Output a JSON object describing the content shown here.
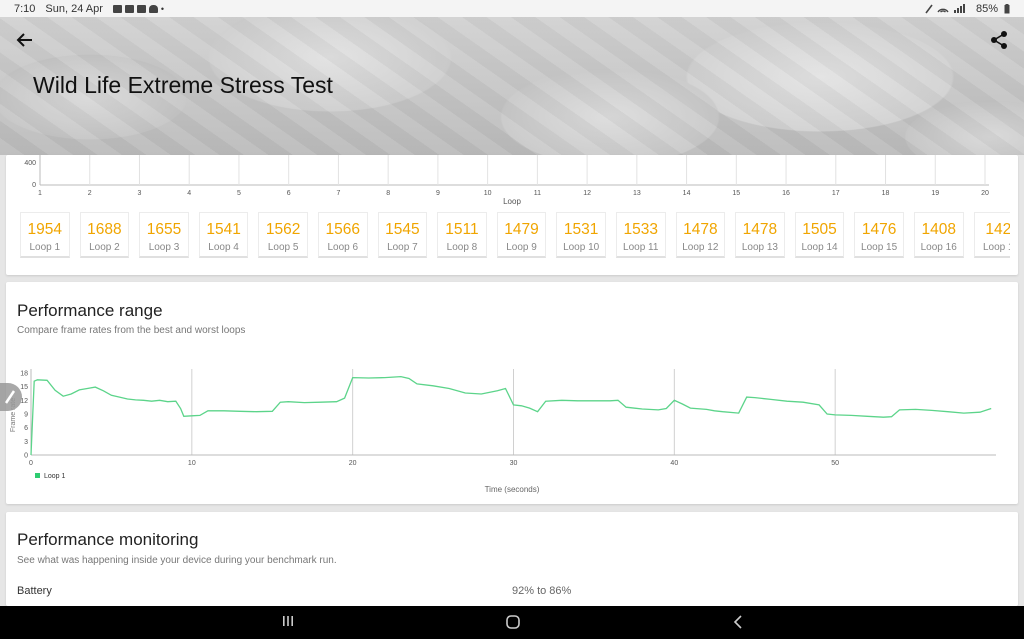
{
  "status": {
    "time": "7:10",
    "date": "Sun, 24 Apr",
    "icons": [
      "image-icon",
      "youtube-icon",
      "mail-icon",
      "cloud-icon"
    ],
    "dot": "•",
    "battery": "85%"
  },
  "header": {
    "title": "Wild Life Extreme Stress Test"
  },
  "loops_card": {
    "axis_label": "Loop",
    "y_ticks": [
      "400",
      "0"
    ],
    "x_ticks": [
      "1",
      "2",
      "3",
      "4",
      "5",
      "6",
      "7",
      "8",
      "9",
      "10",
      "11",
      "12",
      "13",
      "14",
      "15",
      "16",
      "17",
      "18",
      "19",
      "20"
    ],
    "loops": [
      {
        "score": "1954",
        "label": "Loop 1"
      },
      {
        "score": "1688",
        "label": "Loop 2"
      },
      {
        "score": "1655",
        "label": "Loop 3"
      },
      {
        "score": "1541",
        "label": "Loop 4"
      },
      {
        "score": "1562",
        "label": "Loop 5"
      },
      {
        "score": "1566",
        "label": "Loop 6"
      },
      {
        "score": "1545",
        "label": "Loop 7"
      },
      {
        "score": "1511",
        "label": "Loop 8"
      },
      {
        "score": "1479",
        "label": "Loop 9"
      },
      {
        "score": "1531",
        "label": "Loop 10"
      },
      {
        "score": "1533",
        "label": "Loop 11"
      },
      {
        "score": "1478",
        "label": "Loop 12"
      },
      {
        "score": "1478",
        "label": "Loop 13"
      },
      {
        "score": "1505",
        "label": "Loop 14"
      },
      {
        "score": "1476",
        "label": "Loop 15"
      },
      {
        "score": "1408",
        "label": "Loop 16"
      },
      {
        "score": "142",
        "label": "Loop 1"
      }
    ]
  },
  "range_card": {
    "title": "Performance range",
    "subtitle": "Compare frame rates from the best and worst loops"
  },
  "monitor_card": {
    "title": "Performance monitoring",
    "subtitle": "See what was happening inside your device during your benchmark run.",
    "battery_label": "Battery",
    "battery_value": "92% to 86%"
  },
  "colors": {
    "accent": "#f0a500",
    "series": "#5cd48a",
    "legend": "#2ecc71"
  },
  "chart_data": {
    "type": "line",
    "title": "",
    "xlabel": "Time (seconds)",
    "ylabel": "Frame rate",
    "xlim": [
      0,
      60
    ],
    "ylim": [
      0,
      18
    ],
    "x_ticks": [
      0,
      10,
      20,
      30,
      40,
      50
    ],
    "y_ticks": [
      0,
      3,
      6,
      9,
      12,
      15,
      18
    ],
    "grid": "vertical",
    "legend": "bottom-left",
    "series": [
      {
        "name": "Loop 1",
        "x": [
          0,
          0.2,
          0.4,
          1,
          1.5,
          2,
          2.5,
          3,
          3.5,
          4,
          4.5,
          5,
          5.5,
          6,
          6.5,
          7,
          7.5,
          8,
          8.5,
          9,
          9.3,
          9.5,
          10,
          10.5,
          11,
          12,
          13,
          14,
          15,
          15.5,
          16,
          17,
          18,
          19,
          19.5,
          20,
          21,
          22,
          23,
          23.5,
          24,
          25,
          26,
          27,
          28,
          29,
          29.5,
          30,
          30.5,
          31,
          31.5,
          32,
          33,
          34,
          35,
          36,
          36.5,
          37,
          38,
          39,
          39.5,
          40,
          40.5,
          41,
          42,
          42.5,
          43,
          44,
          44.5,
          45,
          46,
          47,
          48,
          49,
          49.5,
          50,
          51,
          52,
          53,
          53.5,
          54,
          55,
          56,
          57,
          58,
          59,
          59.7
        ],
        "values": [
          0,
          16.2,
          16.5,
          16.4,
          14.2,
          12.9,
          13.4,
          14.3,
          14.6,
          14.9,
          14.1,
          13.1,
          12.7,
          12.3,
          12.1,
          12.0,
          11.8,
          12.0,
          11.7,
          11.8,
          10.2,
          8.5,
          8.6,
          8.7,
          9.7,
          9.7,
          9.6,
          9.5,
          9.6,
          11.6,
          11.7,
          11.5,
          11.6,
          11.7,
          12.5,
          17.0,
          16.9,
          17.0,
          17.2,
          16.8,
          15.6,
          15.2,
          14.6,
          13.6,
          13.4,
          14.1,
          14.6,
          11.0,
          10.8,
          10.3,
          9.5,
          11.8,
          12.0,
          11.9,
          11.9,
          11.9,
          12.0,
          10.5,
          10.1,
          9.9,
          10.2,
          12.0,
          11.2,
          10.3,
          10.0,
          9.7,
          9.5,
          9.2,
          12.7,
          12.6,
          12.2,
          11.8,
          11.6,
          11.0,
          9.0,
          8.8,
          8.7,
          8.5,
          8.3,
          8.4,
          9.9,
          10.0,
          9.8,
          9.5,
          9.2,
          9.4,
          10.2
        ]
      }
    ]
  }
}
